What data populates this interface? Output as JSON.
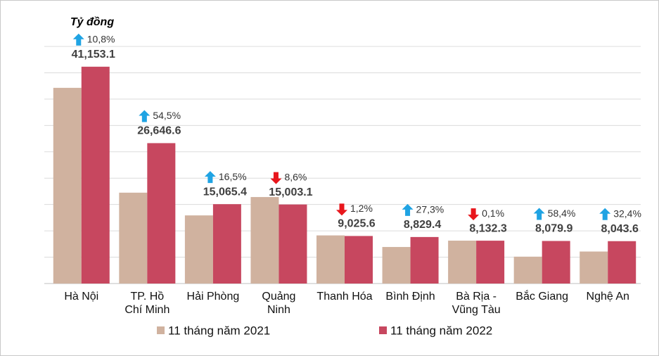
{
  "chart_data": {
    "type": "bar",
    "y_axis_label": "Tỷ đồng",
    "categories": [
      "Hà Nội",
      "TP. Hồ\nChí Minh",
      "Hải Phòng",
      "Quảng\nNinh",
      "Thanh Hóa",
      "Bình Định",
      "Bà Rịa -\nVũng Tàu",
      "Bắc Giang",
      "Nghệ An"
    ],
    "series": [
      {
        "name": "11 tháng năm 2021",
        "color": "#d0b29f",
        "values": [
          37142,
          17247,
          12932,
          16415,
          9135,
          6936,
          8140,
          5101,
          6075
        ]
      },
      {
        "name": "11 tháng năm 2022",
        "color": "#c7475f",
        "values": [
          41153.1,
          26646.6,
          15065.4,
          15003.1,
          9025.6,
          8829.4,
          8132.3,
          8079.9,
          8043.6
        ],
        "value_labels": [
          "41,153.1",
          "26,646.6",
          "15,065.4",
          "15,003.1",
          "9,025.6",
          "8,829.4",
          "8,132.3",
          "8,079.9",
          "8,043.6"
        ]
      }
    ],
    "annotations": [
      {
        "text": "10,8%",
        "direction": "up"
      },
      {
        "text": "54,5%",
        "direction": "up"
      },
      {
        "text": "16,5%",
        "direction": "up"
      },
      {
        "text": "8,6%",
        "direction": "down"
      },
      {
        "text": "1,2%",
        "direction": "down"
      },
      {
        "text": "27,3%",
        "direction": "up"
      },
      {
        "text": "0,1%",
        "direction": "down"
      },
      {
        "text": "58,4%",
        "direction": "up"
      },
      {
        "text": "32,4%",
        "direction": "up"
      }
    ],
    "arrow_colors": {
      "up": "#1fa3e3",
      "down": "#e8161c"
    },
    "ylim": [
      0,
      45000
    ],
    "yticks": [
      0,
      5000,
      10000,
      15000,
      20000,
      25000,
      30000,
      35000,
      40000,
      45000
    ],
    "grid": true,
    "legend": "bottom"
  }
}
